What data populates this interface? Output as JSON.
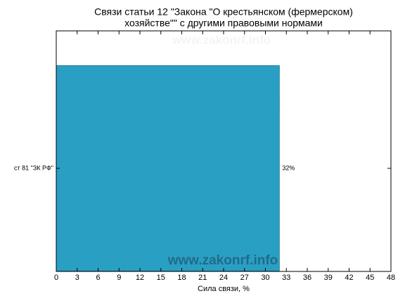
{
  "chart_data": {
    "type": "barh",
    "title": [
      "Связи статьи 12 \"Закона \"О крестьянском (фермерском)",
      "хозяйстве\"\" с другими правовыми нормами"
    ],
    "xlabel": "Сила связи, %",
    "watermark": "www.zakonrf.info",
    "categories": [
      "ст 81 \"ЗК РФ\""
    ],
    "values": [
      32
    ],
    "value_labels": [
      "32%"
    ],
    "color": "#2a9fc4",
    "xlim": [
      0,
      48
    ],
    "xticks": [
      0,
      3,
      6,
      9,
      12,
      15,
      18,
      21,
      24,
      27,
      30,
      33,
      36,
      39,
      42,
      45,
      48
    ]
  }
}
